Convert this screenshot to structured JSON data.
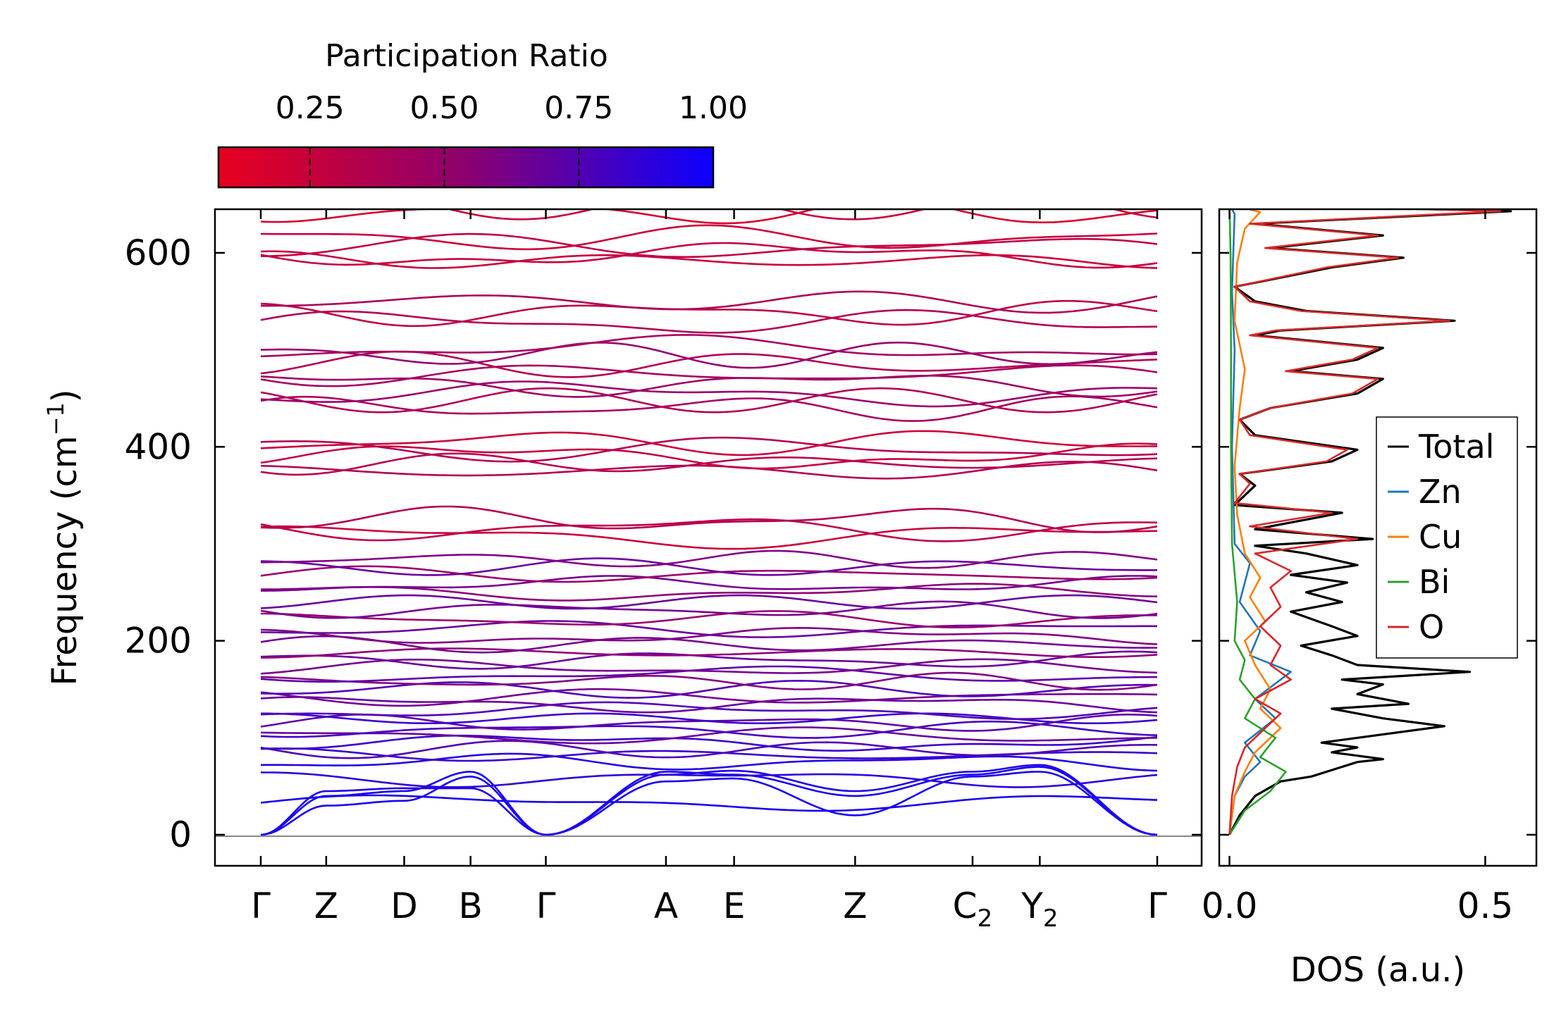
{
  "chart_data": [
    {
      "type": "line",
      "subtype": "phonon-band-structure",
      "ylabel": "Frequency (cm",
      "ylabel_sup": "−1",
      "ylabel_tail": ")",
      "ylim": [
        -32,
        645
      ],
      "yticks": [
        0,
        200,
        400,
        600
      ],
      "x_points": [
        {
          "label": "Γ",
          "x": 0.0
        },
        {
          "label": "Z",
          "x": 0.073
        },
        {
          "label": "D",
          "x": 0.16
        },
        {
          "label": "B",
          "x": 0.234
        },
        {
          "label": "Γ",
          "x": 0.318
        },
        {
          "label": "A",
          "x": 0.452
        },
        {
          "label": "E",
          "x": 0.528
        },
        {
          "label": "Z",
          "x": 0.663
        },
        {
          "label": "C",
          "sub": "2",
          "x": 0.794
        },
        {
          "label": "Y",
          "sub": "2",
          "x": 0.869
        },
        {
          "label": "Γ",
          "x": 1.0
        }
      ],
      "zero_line": 0,
      "acoustic_branches": [
        {
          "pr": 0.95,
          "values": [
            0,
            30,
            35,
            60,
            0,
            55,
            58,
            20,
            60,
            65,
            0
          ]
        },
        {
          "pr": 0.95,
          "values": [
            0,
            40,
            45,
            65,
            0,
            65,
            62,
            40,
            62,
            70,
            0
          ]
        },
        {
          "pr": 0.92,
          "values": [
            0,
            45,
            48,
            48,
            0,
            62,
            66,
            45,
            65,
            72,
            0
          ]
        }
      ],
      "optical_branch_bases": [
        33,
        58,
        75,
        82,
        88,
        95,
        102,
        108,
        115,
        120,
        128,
        135,
        142,
        150,
        158,
        165,
        172,
        180,
        188,
        196,
        205,
        212,
        222,
        232,
        240,
        250,
        258,
        268,
        276,
        284,
        308,
        316,
        325,
        375,
        383,
        390,
        398,
        405,
        440,
        448,
        455,
        465,
        475,
        485,
        495,
        502,
        528,
        538,
        550,
        592,
        598,
        606,
        615,
        642,
        648
      ],
      "branch_pr": [
        0.95,
        0.85,
        0.9,
        0.8,
        0.7,
        0.8,
        0.6,
        0.75,
        0.65,
        0.8,
        0.7,
        0.6,
        0.55,
        0.7,
        0.5,
        0.65,
        0.55,
        0.6,
        0.45,
        0.55,
        0.5,
        0.6,
        0.4,
        0.55,
        0.6,
        0.45,
        0.55,
        0.4,
        0.6,
        0.5,
        0.2,
        0.25,
        0.3,
        0.3,
        0.28,
        0.22,
        0.3,
        0.2,
        0.35,
        0.3,
        0.4,
        0.38,
        0.35,
        0.3,
        0.42,
        0.35,
        0.3,
        0.25,
        0.32,
        0.2,
        0.22,
        0.25,
        0.2,
        0.15,
        0.2
      ],
      "colorbar": {
        "title": "Participation Ratio",
        "ticks": [
          0.25,
          0.5,
          0.75,
          1.0
        ],
        "tick_labels": [
          "0.25",
          "0.50",
          "0.75",
          "1.00"
        ],
        "range": [
          0.08,
          1.0
        ],
        "cmap": [
          "#e8001e",
          "#0b00ff"
        ]
      }
    },
    {
      "type": "line",
      "subtype": "density-of-states",
      "xlabel": "DOS (a.u.)",
      "xlim": [
        -0.02,
        0.6
      ],
      "xticks": [
        0.0,
        0.5
      ],
      "xtick_labels": [
        "0.0",
        "0.5"
      ],
      "ylim": [
        -32,
        645
      ],
      "series": [
        {
          "name": "Total",
          "color": "#000000",
          "points": [
            [
              0,
              0
            ],
            [
              0.02,
              20
            ],
            [
              0.05,
              40
            ],
            [
              0.1,
              55
            ],
            [
              0.16,
              60
            ],
            [
              0.25,
              75
            ],
            [
              0.3,
              78
            ],
            [
              0.2,
              85
            ],
            [
              0.25,
              90
            ],
            [
              0.18,
              95
            ],
            [
              0.42,
              112
            ],
            [
              0.3,
              120
            ],
            [
              0.2,
              130
            ],
            [
              0.35,
              135
            ],
            [
              0.25,
              145
            ],
            [
              0.3,
              155
            ],
            [
              0.22,
              160
            ],
            [
              0.47,
              168
            ],
            [
              0.25,
              175
            ],
            [
              0.2,
              185
            ],
            [
              0.14,
              195
            ],
            [
              0.25,
              205
            ],
            [
              0.2,
              215
            ],
            [
              0.12,
              230
            ],
            [
              0.22,
              240
            ],
            [
              0.15,
              250
            ],
            [
              0.23,
              260
            ],
            [
              0.12,
              268
            ],
            [
              0.25,
              278
            ],
            [
              0.15,
              290
            ],
            [
              0.05,
              298
            ],
            [
              0.28,
              305
            ],
            [
              0.05,
              315
            ],
            [
              0.22,
              332
            ],
            [
              0.01,
              340
            ],
            [
              0.05,
              360
            ],
            [
              0.02,
              372
            ],
            [
              0.2,
              385
            ],
            [
              0.25,
              397
            ],
            [
              0.05,
              412
            ],
            [
              0.02,
              428
            ],
            [
              0.08,
              440
            ],
            [
              0.25,
              455
            ],
            [
              0.3,
              470
            ],
            [
              0.12,
              478
            ],
            [
              0.25,
              490
            ],
            [
              0.3,
              502
            ],
            [
              0.05,
              515
            ],
            [
              0.1,
              520
            ],
            [
              0.44,
              530
            ],
            [
              0.15,
              540
            ],
            [
              0.05,
              550
            ],
            [
              0.01,
              565
            ],
            [
              0.2,
              585
            ],
            [
              0.34,
              595
            ],
            [
              0.08,
              605
            ],
            [
              0.3,
              618
            ],
            [
              0.05,
              630
            ],
            [
              0.55,
              643
            ],
            [
              0.02,
              650
            ],
            [
              0,
              655
            ]
          ]
        },
        {
          "name": "Zn",
          "color": "#1f77b4",
          "points": [
            [
              0,
              0
            ],
            [
              0.01,
              40
            ],
            [
              0.03,
              60
            ],
            [
              0.06,
              75
            ],
            [
              0.03,
              95
            ],
            [
              0.09,
              120
            ],
            [
              0.05,
              140
            ],
            [
              0.12,
              168
            ],
            [
              0.04,
              185
            ],
            [
              0.06,
              210
            ],
            [
              0.02,
              240
            ],
            [
              0.04,
              280
            ],
            [
              0.01,
              300
            ],
            [
              0.005,
              400
            ],
            [
              0.01,
              500
            ],
            [
              0.005,
              560
            ],
            [
              0.01,
              640
            ],
            [
              0,
              650
            ]
          ]
        },
        {
          "name": "Cu",
          "color": "#ff7f0e",
          "points": [
            [
              0,
              0
            ],
            [
              0.01,
              40
            ],
            [
              0.03,
              65
            ],
            [
              0.05,
              85
            ],
            [
              0.1,
              110
            ],
            [
              0.06,
              130
            ],
            [
              0.08,
              150
            ],
            [
              0.05,
              175
            ],
            [
              0.03,
              200
            ],
            [
              0.07,
              220
            ],
            [
              0.04,
              245
            ],
            [
              0.06,
              265
            ],
            [
              0.03,
              290
            ],
            [
              0.015,
              330
            ],
            [
              0.01,
              380
            ],
            [
              0.02,
              440
            ],
            [
              0.03,
              480
            ],
            [
              0.01,
              530
            ],
            [
              0.015,
              590
            ],
            [
              0.03,
              625
            ],
            [
              0.06,
              642
            ],
            [
              0,
              650
            ]
          ]
        },
        {
          "name": "Bi",
          "color": "#2ca02c",
          "points": [
            [
              0,
              0
            ],
            [
              0.03,
              25
            ],
            [
              0.08,
              45
            ],
            [
              0.11,
              65
            ],
            [
              0.06,
              80
            ],
            [
              0.09,
              100
            ],
            [
              0.03,
              120
            ],
            [
              0.05,
              140
            ],
            [
              0.02,
              160
            ],
            [
              0.03,
              180
            ],
            [
              0.01,
              200
            ],
            [
              0.015,
              240
            ],
            [
              0.005,
              300
            ],
            [
              0.003,
              400
            ],
            [
              0.003,
              500
            ],
            [
              0.002,
              600
            ],
            [
              0,
              650
            ]
          ]
        },
        {
          "name": "O",
          "color": "#d62728",
          "points": [
            [
              0,
              0
            ],
            [
              0.005,
              40
            ],
            [
              0.015,
              70
            ],
            [
              0.03,
              90
            ],
            [
              0.06,
              105
            ],
            [
              0.1,
              125
            ],
            [
              0.05,
              140
            ],
            [
              0.12,
              160
            ],
            [
              0.08,
              175
            ],
            [
              0.1,
              195
            ],
            [
              0.06,
              215
            ],
            [
              0.1,
              235
            ],
            [
              0.08,
              255
            ],
            [
              0.12,
              272
            ],
            [
              0.05,
              290
            ],
            [
              0.25,
              305
            ],
            [
              0.04,
              318
            ],
            [
              0.2,
              332
            ],
            [
              0.01,
              342
            ],
            [
              0.04,
              362
            ],
            [
              0.02,
              372
            ],
            [
              0.19,
              385
            ],
            [
              0.23,
              397
            ],
            [
              0.04,
              412
            ],
            [
              0.02,
              428
            ],
            [
              0.08,
              440
            ],
            [
              0.24,
              455
            ],
            [
              0.29,
              470
            ],
            [
              0.11,
              478
            ],
            [
              0.24,
              490
            ],
            [
              0.29,
              502
            ],
            [
              0.04,
              515
            ],
            [
              0.09,
              520
            ],
            [
              0.43,
              530
            ],
            [
              0.14,
              540
            ],
            [
              0.04,
              550
            ],
            [
              0.01,
              565
            ],
            [
              0.19,
              585
            ],
            [
              0.33,
              595
            ],
            [
              0.07,
              605
            ],
            [
              0.29,
              618
            ],
            [
              0.04,
              630
            ],
            [
              0.53,
              643
            ],
            [
              0.02,
              650
            ],
            [
              0,
              655
            ]
          ]
        }
      ],
      "legend": {
        "placement": "center-right",
        "entries": [
          "Total",
          "Zn",
          "Cu",
          "Bi",
          "O"
        ]
      }
    }
  ]
}
